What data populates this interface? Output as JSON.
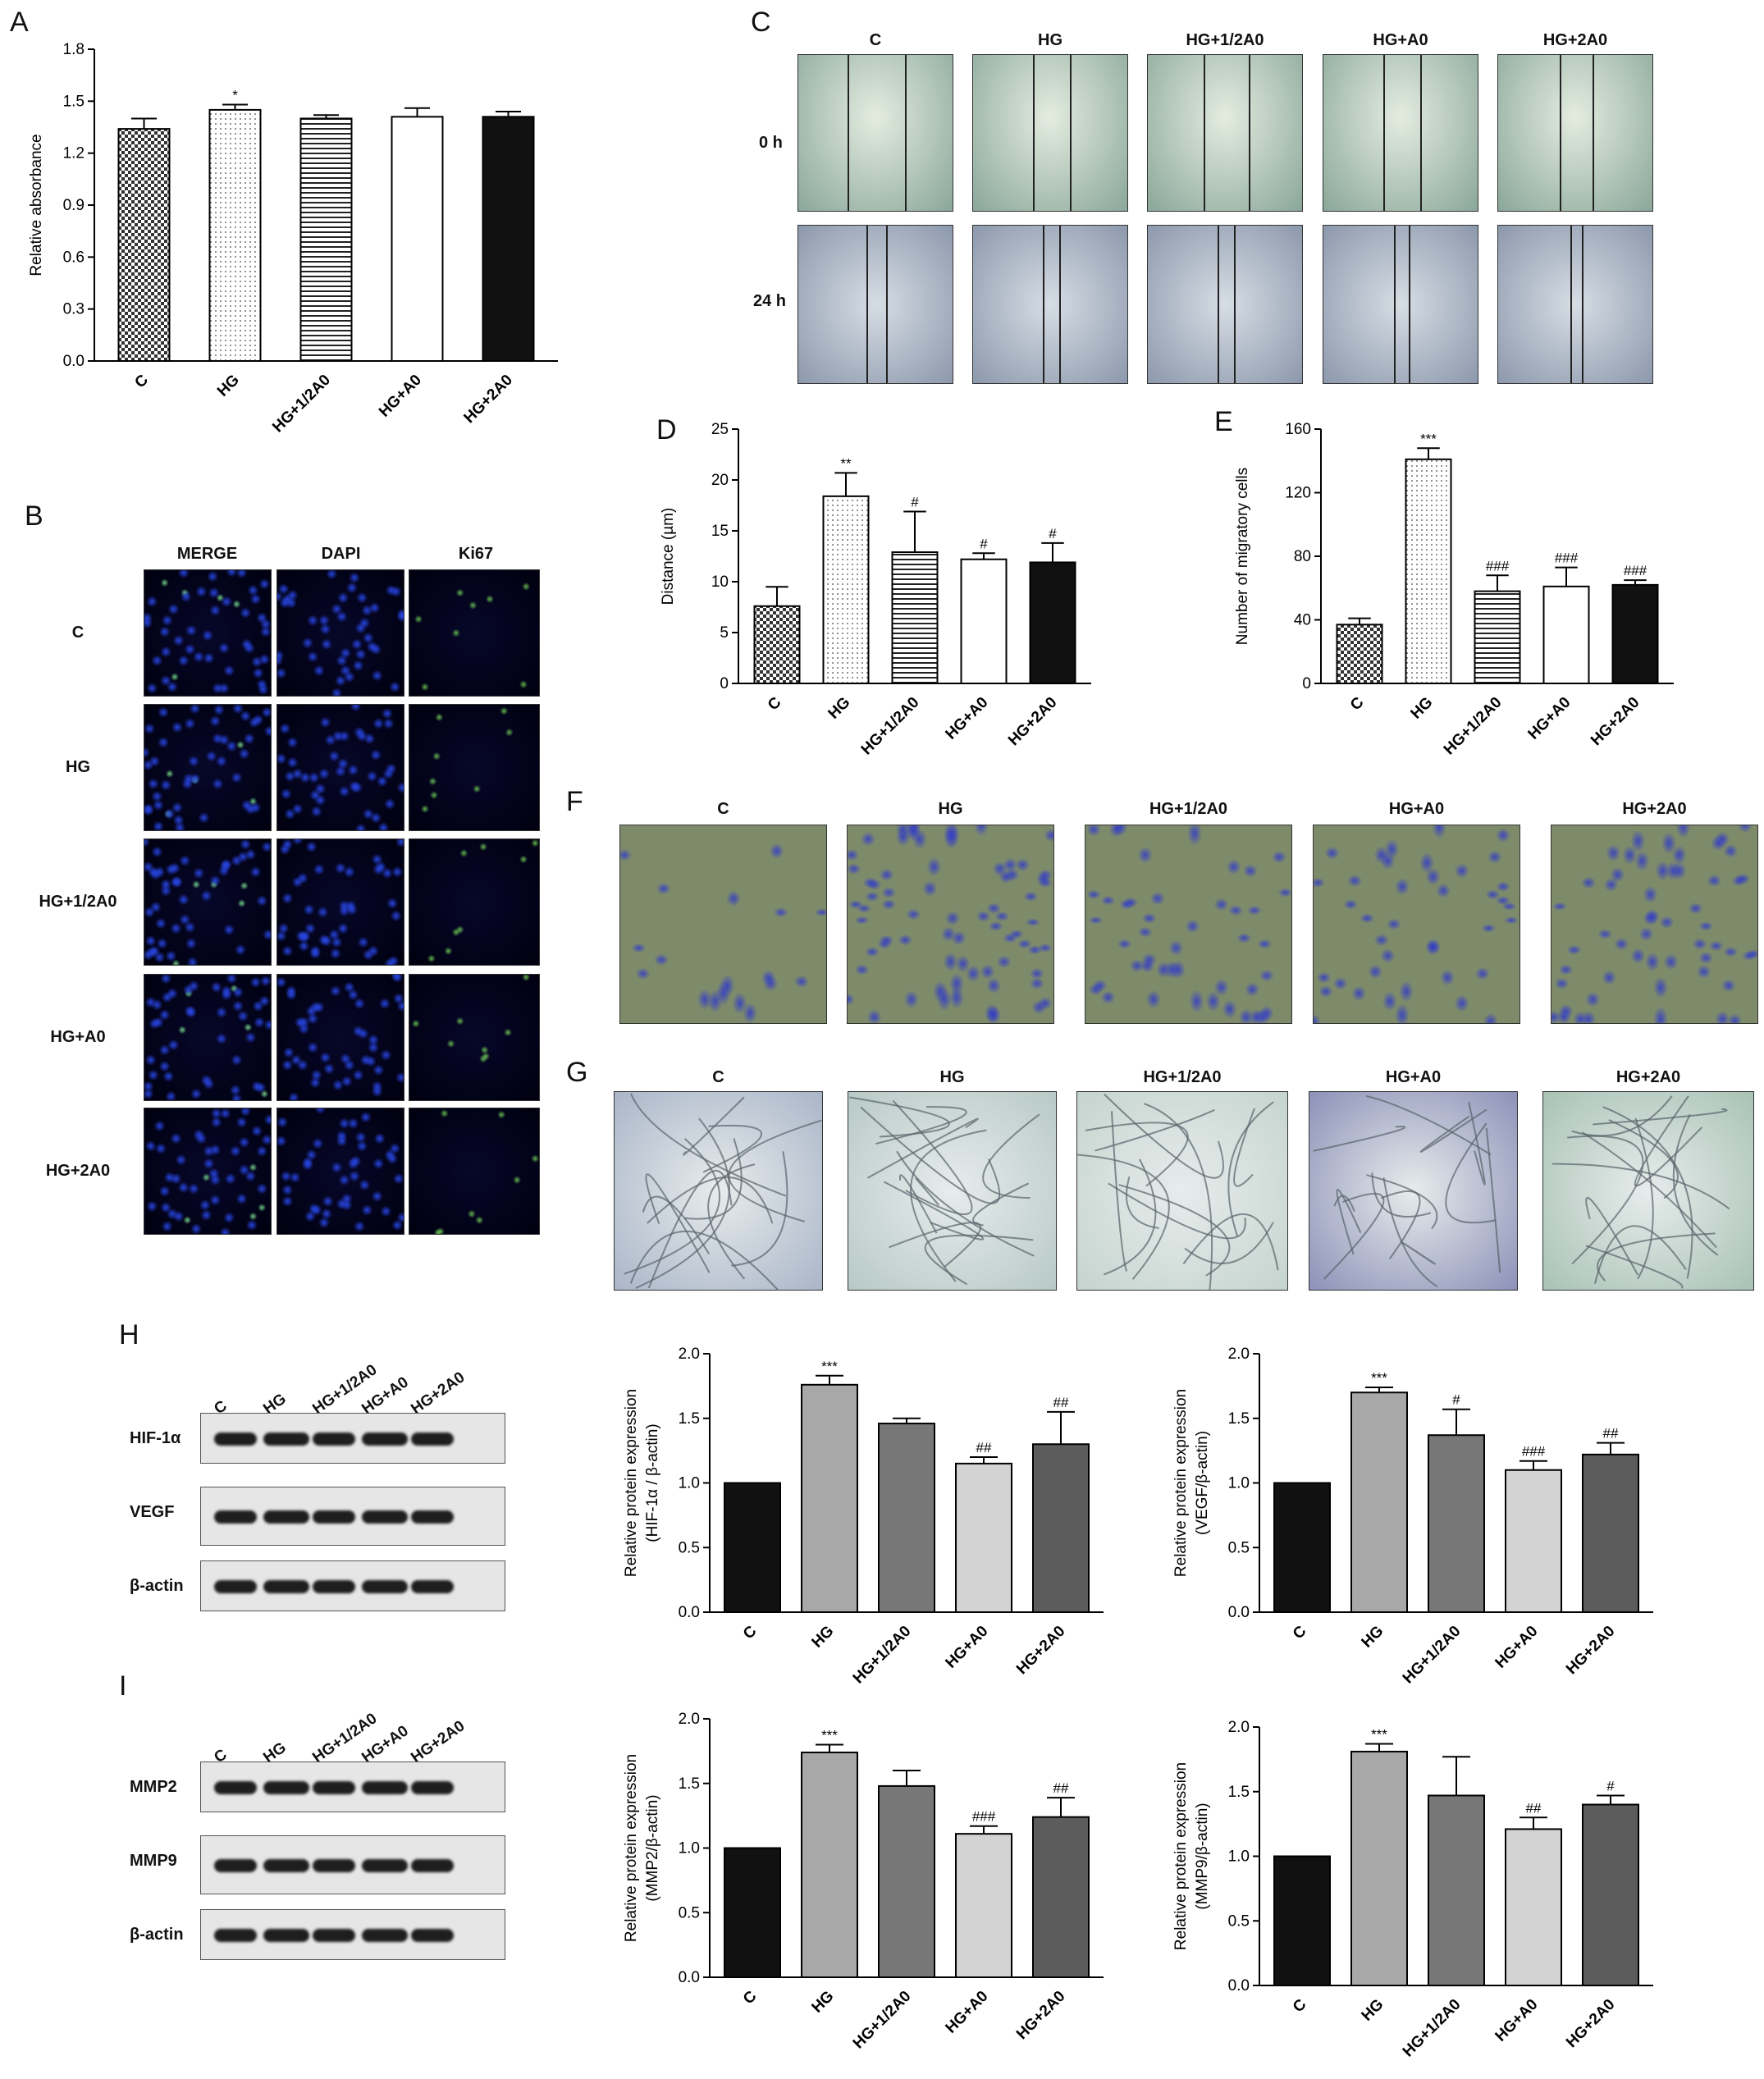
{
  "panels": {
    "A": "A",
    "B": "B",
    "C": "C",
    "D": "D",
    "E": "E",
    "F": "F",
    "G": "G",
    "H": "H",
    "I": "I"
  },
  "groups": [
    "C",
    "HG",
    "HG+1/2A0",
    "HG+A0",
    "HG+2A0"
  ],
  "panel_b": {
    "columns": [
      "MERGE",
      "DAPI",
      "Ki67"
    ],
    "rows": [
      "C",
      "HG",
      "HG+1/2A0",
      "HG+A0",
      "HG+2A0"
    ]
  },
  "panel_c": {
    "columns": [
      "C",
      "HG",
      "HG+1/2A0",
      "HG+A0",
      "HG+2A0"
    ],
    "rows": [
      "0 h",
      "24 h"
    ]
  },
  "panel_f": {
    "columns": [
      "C",
      "HG",
      "HG+1/2A0",
      "HG+A0",
      "HG+2A0"
    ]
  },
  "panel_g": {
    "columns": [
      "C",
      "HG",
      "HG+1/2A0",
      "HG+A0",
      "HG+2A0"
    ]
  },
  "panel_h": {
    "lanes": [
      "C",
      "HG",
      "HG+1/2A0",
      "HG+A0",
      "HG+2A0"
    ],
    "rows": [
      "HIF-1α",
      "VEGF",
      "β-actin"
    ]
  },
  "panel_i": {
    "lanes": [
      "C",
      "HG",
      "HG+1/2A0",
      "HG+A0",
      "HG+2A0"
    ],
    "rows": [
      "MMP2",
      "MMP9",
      "β-actin"
    ]
  },
  "colors": {
    "dark": "#111111",
    "hg_gray": "#a8a8a8",
    "mid_gray": "#777777",
    "light_gray": "#d3d3d3",
    "dark_gray": "#5c5c5c"
  },
  "chart_data": [
    {
      "id": "A",
      "type": "bar",
      "categories": [
        "C",
        "HG",
        "HG+1/2A0",
        "HG+A0",
        "HG+2A0"
      ],
      "values": [
        1.34,
        1.45,
        1.4,
        1.41,
        1.41
      ],
      "errors": [
        0.06,
        0.03,
        0.02,
        0.05,
        0.03
      ],
      "annotations": [
        "",
        "*",
        "",
        "",
        ""
      ],
      "ylabel": "Relative absorbance",
      "ylim": [
        0,
        1.8
      ],
      "yticks": [
        "0.0",
        "0.3",
        "0.6",
        "0.9",
        "1.2",
        "1.5",
        "1.8"
      ],
      "fills": [
        "checker",
        "dots",
        "hlines",
        "white",
        "black"
      ]
    },
    {
      "id": "D",
      "type": "bar",
      "categories": [
        "C",
        "HG",
        "HG+1/2A0",
        "HG+A0",
        "HG+2A0"
      ],
      "values": [
        7.6,
        18.4,
        12.9,
        12.2,
        11.9
      ],
      "errors": [
        1.9,
        2.3,
        4.0,
        0.6,
        1.9
      ],
      "annotations": [
        "",
        "**",
        "#",
        "#",
        "#"
      ],
      "ylabel": "Distance (µm)",
      "ylim": [
        0,
        25
      ],
      "yticks": [
        "0",
        "5",
        "10",
        "15",
        "20",
        "25"
      ],
      "fills": [
        "checker",
        "dots",
        "hlines",
        "white",
        "black"
      ]
    },
    {
      "id": "E",
      "type": "bar",
      "categories": [
        "C",
        "HG",
        "HG+1/2A0",
        "HG+A0",
        "HG+2A0"
      ],
      "values": [
        37,
        141,
        58,
        61,
        62
      ],
      "errors": [
        4,
        7,
        10,
        12,
        3
      ],
      "annotations": [
        "",
        "***",
        "###",
        "###",
        "###"
      ],
      "ylabel": "Number of migratory cells",
      "ylim": [
        0,
        160
      ],
      "yticks": [
        "0",
        "40",
        "80",
        "120",
        "160"
      ],
      "fills": [
        "checker",
        "dots",
        "hlines",
        "white",
        "black"
      ]
    },
    {
      "id": "H1",
      "type": "bar",
      "categories": [
        "C",
        "HG",
        "HG+1/2A0",
        "HG+A0",
        "HG+2A0"
      ],
      "values": [
        1.0,
        1.76,
        1.46,
        1.15,
        1.3
      ],
      "errors": [
        0,
        0.07,
        0.04,
        0.05,
        0.25
      ],
      "annotations": [
        "",
        "***",
        "",
        "##",
        "##"
      ],
      "ylabel": "Relative protein expression (HIF-1α / β-actin)",
      "ylabel_lines": [
        "Relative protein expression",
        "(HIF-1α / β-actin)"
      ],
      "ylim": [
        0,
        2.0
      ],
      "yticks": [
        "0.0",
        "0.5",
        "1.0",
        "1.5",
        "2.0"
      ],
      "fills": [
        "g0",
        "g1",
        "g2",
        "g3",
        "g4"
      ]
    },
    {
      "id": "H2",
      "type": "bar",
      "categories": [
        "C",
        "HG",
        "HG+1/2A0",
        "HG+A0",
        "HG+2A0"
      ],
      "values": [
        1.0,
        1.7,
        1.37,
        1.1,
        1.22
      ],
      "errors": [
        0,
        0.04,
        0.2,
        0.07,
        0.09
      ],
      "annotations": [
        "",
        "***",
        "#",
        "###",
        "##"
      ],
      "ylabel": "Relative protein expression (VEGF/β-actin)",
      "ylabel_lines": [
        "Relative protein expression",
        "(VEGF/β-actin)"
      ],
      "ylim": [
        0,
        2.0
      ],
      "yticks": [
        "0.0",
        "0.5",
        "1.0",
        "1.5",
        "2.0"
      ],
      "fills": [
        "g0",
        "g1",
        "g2",
        "g3",
        "g4"
      ]
    },
    {
      "id": "I1",
      "type": "bar",
      "categories": [
        "C",
        "HG",
        "HG+1/2A0",
        "HG+A0",
        "HG+2A0"
      ],
      "values": [
        1.0,
        1.74,
        1.48,
        1.11,
        1.24
      ],
      "errors": [
        0,
        0.06,
        0.12,
        0.06,
        0.15
      ],
      "annotations": [
        "",
        "***",
        "",
        "###",
        "##"
      ],
      "ylabel": "Relative protein expression (MMP2/β-actin)",
      "ylabel_lines": [
        "Relative protein expression",
        "(MMP2/β-actin)"
      ],
      "ylim": [
        0,
        2.0
      ],
      "yticks": [
        "0.0",
        "0.5",
        "1.0",
        "1.5",
        "2.0"
      ],
      "fills": [
        "g0",
        "g1",
        "g2",
        "g3",
        "g4"
      ]
    },
    {
      "id": "I2",
      "type": "bar",
      "categories": [
        "C",
        "HG",
        "HG+1/2A0",
        "HG+A0",
        "HG+2A0"
      ],
      "values": [
        1.0,
        1.81,
        1.47,
        1.21,
        1.4
      ],
      "errors": [
        0,
        0.06,
        0.3,
        0.09,
        0.07
      ],
      "annotations": [
        "",
        "***",
        "",
        "##",
        "#"
      ],
      "ylabel": "Relative protein expression (MMP9/β-actin)",
      "ylabel_lines": [
        "Relative protein expression",
        "(MMP9/β-actin)"
      ],
      "ylim": [
        0,
        2.0
      ],
      "yticks": [
        "0.0",
        "0.5",
        "1.0",
        "1.5",
        "2.0"
      ],
      "fills": [
        "g0",
        "g1",
        "g2",
        "g3",
        "g4"
      ]
    }
  ]
}
